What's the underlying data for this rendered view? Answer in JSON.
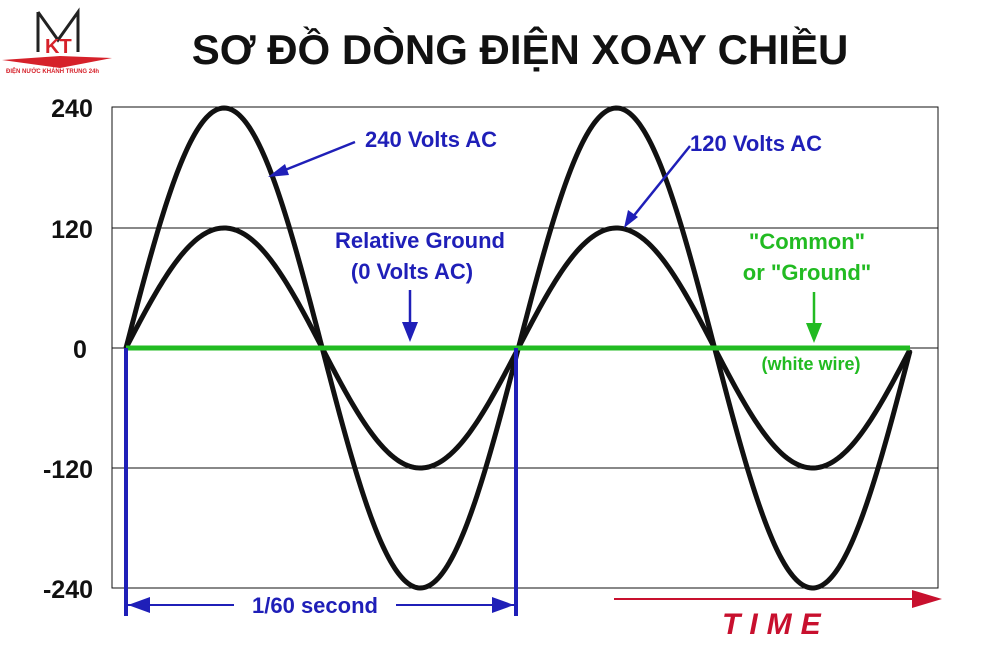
{
  "title": "SƠ ĐỒ DÒNG ĐIỆN XOAY CHIỀU",
  "logo": {
    "initials": "KT",
    "tagline": "ĐIỆN NƯỚC KHÁNH TRUNG 24h",
    "color": "#d6212a"
  },
  "chart_data": {
    "type": "line",
    "ylim": [
      -240,
      240
    ],
    "yticks": [
      "240",
      "120",
      "0",
      "-120",
      "-240"
    ],
    "ytick_values": [
      240,
      120,
      0,
      -120,
      -240
    ],
    "x_unit": "second",
    "x_range": [
      0,
      0.0333
    ],
    "grid": true,
    "series": [
      {
        "name": "240 Volts AC",
        "color": "#111111",
        "amplitude": 240,
        "frequency_hz": 60
      },
      {
        "name": "120 Volts AC",
        "color": "#111111",
        "amplitude": 120,
        "frequency_hz": 60
      },
      {
        "name": "\"Common\" or \"Ground\"",
        "color": "#22bb22",
        "amplitude": 0,
        "frequency_hz": 60
      }
    ]
  },
  "annotations": {
    "v240": "240 Volts AC",
    "v120": "120 Volts AC",
    "relative_ground_1": "Relative Ground",
    "relative_ground_2": "(0 Volts AC)",
    "common_1": "\"Common\"",
    "common_2": "or \"Ground\"",
    "white_wire": "(white wire)",
    "period": "1/60 second",
    "time": "TIME"
  },
  "colors": {
    "annotation_blue": "#1f1fb8",
    "ground_green": "#22bb22",
    "time_red": "#c8102e",
    "wave_black": "#111111",
    "grid": "#111111"
  }
}
